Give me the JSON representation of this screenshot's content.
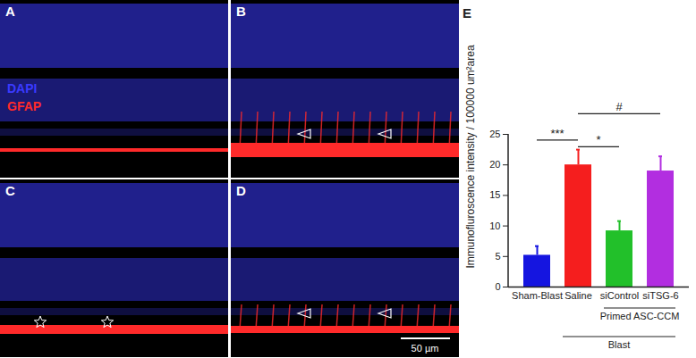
{
  "panels": {
    "labels": [
      "A",
      "B",
      "C",
      "D"
    ],
    "channels": [
      {
        "name": "DAPI",
        "color": "#3a3aff"
      },
      {
        "name": "GFAP",
        "color": "#ff2a2a"
      }
    ],
    "scale_bar": "50 µm"
  },
  "chart_data": {
    "type": "bar",
    "panel_label": "E",
    "categories": [
      "Sham-Blast",
      "Saline",
      "siControl",
      "siTSG-6"
    ],
    "values": [
      5.2,
      20.0,
      9.2,
      19.0
    ],
    "errors": [
      1.5,
      2.5,
      1.6,
      2.4
    ],
    "colors": [
      "#1515e0",
      "#f51e1e",
      "#22c02a",
      "#b22ee0"
    ],
    "y_label": "Immunofluroscence intensity / 100000 um²area",
    "ylim": [
      0,
      25
    ],
    "yticks": [
      0,
      5,
      10,
      15,
      20,
      25
    ],
    "grid": false,
    "groups": [
      {
        "label": "Primed ASC-CCM",
        "categories": [
          "siControl",
          "siTSG-6"
        ]
      },
      {
        "label": "Blast",
        "categories": [
          "Saline",
          "siControl",
          "siTSG-6"
        ]
      }
    ],
    "annotations": [
      {
        "text": "***",
        "from": "Sham-Blast",
        "to": "Saline",
        "y": 24.0
      },
      {
        "text": "*",
        "from": "Saline",
        "to": "siControl",
        "y": 22.9
      },
      {
        "text": "#",
        "from": "Saline",
        "to": "siTSG-6",
        "y": 28.3
      }
    ]
  }
}
